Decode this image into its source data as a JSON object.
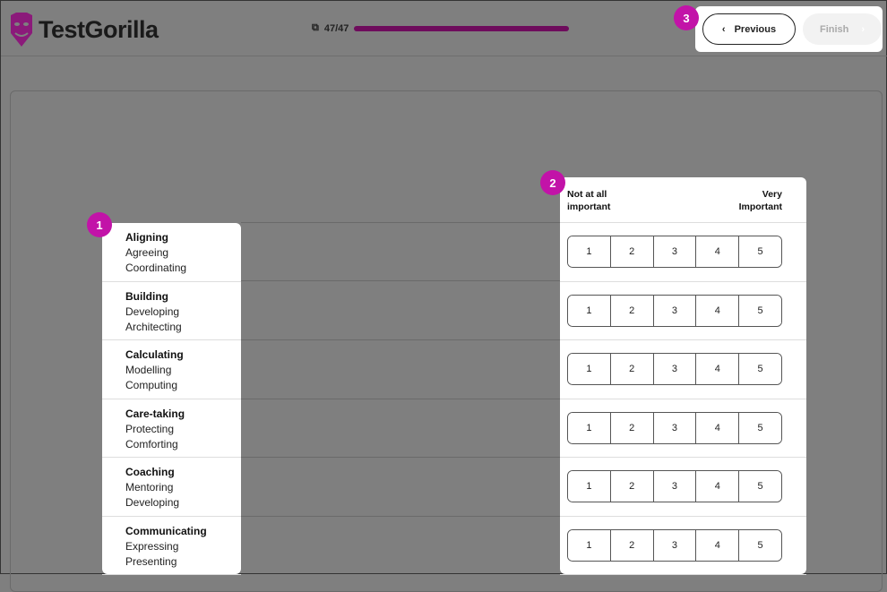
{
  "header": {
    "brand": "TestGorilla",
    "progress_text": "47/47",
    "progress_percent": 100,
    "accent": "#6e0c5c"
  },
  "nav": {
    "previous": "Previous",
    "finish": "Finish"
  },
  "badges": [
    "1",
    "2",
    "3"
  ],
  "scale": {
    "low": "Not at all important",
    "high": "Very Important",
    "options": [
      "1",
      "2",
      "3",
      "4",
      "5"
    ]
  },
  "items": [
    {
      "title": "Aligning",
      "l1": "Agreeing",
      "l2": "Coordinating"
    },
    {
      "title": "Building",
      "l1": "Developing",
      "l2": "Architecting"
    },
    {
      "title": "Calculating",
      "l1": "Modelling",
      "l2": "Computing"
    },
    {
      "title": "Care-taking",
      "l1": "Protecting",
      "l2": "Comforting"
    },
    {
      "title": "Coaching",
      "l1": "Mentoring",
      "l2": "Developing"
    },
    {
      "title": "Communicating",
      "l1": "Expressing",
      "l2": "Presenting"
    }
  ]
}
